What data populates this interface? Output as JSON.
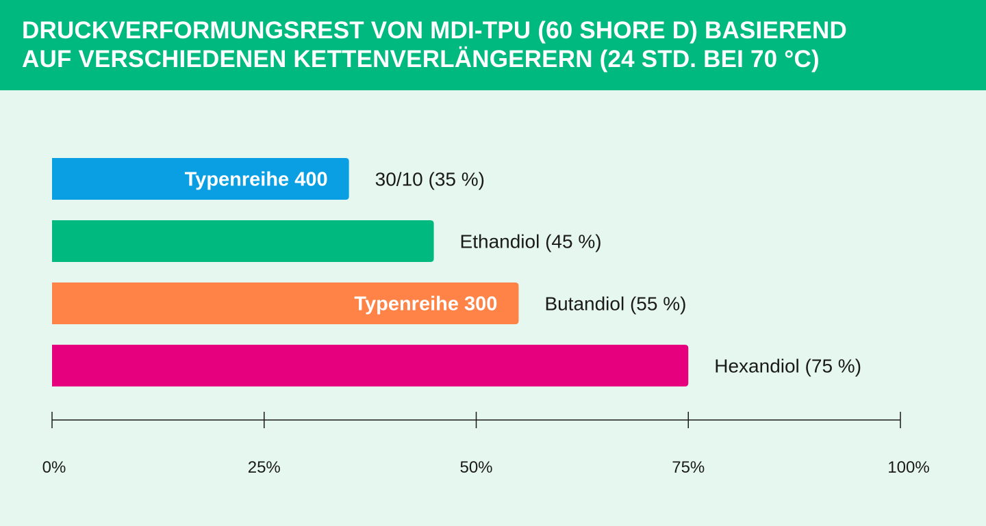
{
  "header": {
    "title_line1": "DRUCKVERFORMUNGSREST VON MDI-TPU (60 SHORE D) BASIEREND",
    "title_line2": "AUF VERSCHIEDENEN KETTENVERLÄNGERERN (24 STD. BEI 70 °C)"
  },
  "chart_data": {
    "type": "bar",
    "orientation": "horizontal",
    "title": "DRUCKVERFORMUNGSREST VON MDI-TPU (60 SHORE D) BASIEREND AUF VERSCHIEDENEN KETTENVERLÄNGERERN (24 STD. BEI 70 °C)",
    "xlim": [
      0,
      100
    ],
    "grid": false,
    "ticks": [
      {
        "value": 0,
        "label": "0%"
      },
      {
        "value": 25,
        "label": "25%"
      },
      {
        "value": 50,
        "label": "50%"
      },
      {
        "value": 75,
        "label": "75%"
      },
      {
        "value": 100,
        "label": "100%"
      }
    ],
    "bars": [
      {
        "category": "30/10 (35 %)",
        "value": 35,
        "inner_label": "Typenreihe 400",
        "color": "#0a9fe3"
      },
      {
        "category": "Ethandiol (45 %)",
        "value": 45,
        "inner_label": "",
        "color": "#00b97e"
      },
      {
        "category": "Butandiol (55 %)",
        "value": 55,
        "inner_label": "Typenreihe 300",
        "color": "#ff8247"
      },
      {
        "category": "Hexandiol (75 %)",
        "value": 75,
        "inner_label": "",
        "color": "#e6007e"
      }
    ]
  }
}
